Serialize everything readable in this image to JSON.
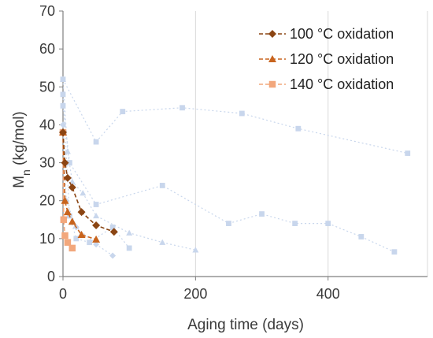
{
  "chart_data": {
    "type": "scatter",
    "xlabel": "Aging time (days)",
    "ylabel_main": "M",
    "ylabel_sub": "n",
    "ylabel_rest": " (kg/mol)",
    "xlim": [
      0,
      550
    ],
    "ylim": [
      0,
      70
    ],
    "x_ticks": [
      0,
      200,
      400
    ],
    "y_ticks": [
      0,
      10,
      20,
      30,
      40,
      50,
      60,
      70
    ],
    "grid": "vertical",
    "legend_position": "top-right",
    "series": [
      {
        "name": "100 °C oxidation",
        "color": "#8B4513",
        "marker": "diamond",
        "line": "dashed",
        "x": [
          0,
          3,
          7,
          14,
          28,
          50,
          77
        ],
        "y": [
          38,
          30,
          26,
          23.5,
          17,
          13.5,
          11.8
        ]
      },
      {
        "name": "120 °C oxidation",
        "color": "#C8641E",
        "marker": "triangle",
        "line": "dashed",
        "x": [
          0,
          3,
          7,
          14,
          28,
          50
        ],
        "y": [
          38,
          20,
          17,
          14.5,
          11,
          9.8
        ]
      },
      {
        "name": "140 °C oxidation",
        "color": "#F2A77C",
        "marker": "square",
        "line": "dashed",
        "x": [
          0,
          1,
          3,
          7,
          14
        ],
        "y": [
          38,
          15,
          10.8,
          9,
          7.5
        ]
      }
    ],
    "background_series": [
      {
        "color": "#C8D6EC",
        "marker": "square",
        "x": [
          0,
          50,
          90,
          180,
          270,
          355,
          520
        ],
        "y": [
          52,
          35.5,
          43.5,
          44.5,
          43,
          39,
          32.5
        ]
      },
      {
        "color": "#C8D6EC",
        "marker": "triangle",
        "x": [
          0,
          7,
          14,
          30,
          50,
          100,
          150,
          200
        ],
        "y": [
          52,
          33,
          25,
          22,
          16,
          11.5,
          9,
          7
        ]
      },
      {
        "color": "#C8D6EC",
        "marker": "square",
        "x": [
          0,
          10,
          50,
          150,
          250,
          300,
          350,
          400,
          450,
          500
        ],
        "y": [
          45,
          30,
          19,
          24,
          14,
          16.5,
          14,
          14,
          10.5,
          6.5
        ]
      },
      {
        "color": "#C8D6EC",
        "marker": "square",
        "x": [
          0,
          10,
          20,
          40,
          75,
          100
        ],
        "y": [
          48,
          16,
          10,
          9,
          13,
          7.5
        ]
      },
      {
        "color": "#C8D6EC",
        "marker": "diamond",
        "x": [
          0,
          5,
          20,
          50,
          75
        ],
        "y": [
          40,
          20,
          13,
          8.5,
          5.5
        ]
      }
    ]
  }
}
